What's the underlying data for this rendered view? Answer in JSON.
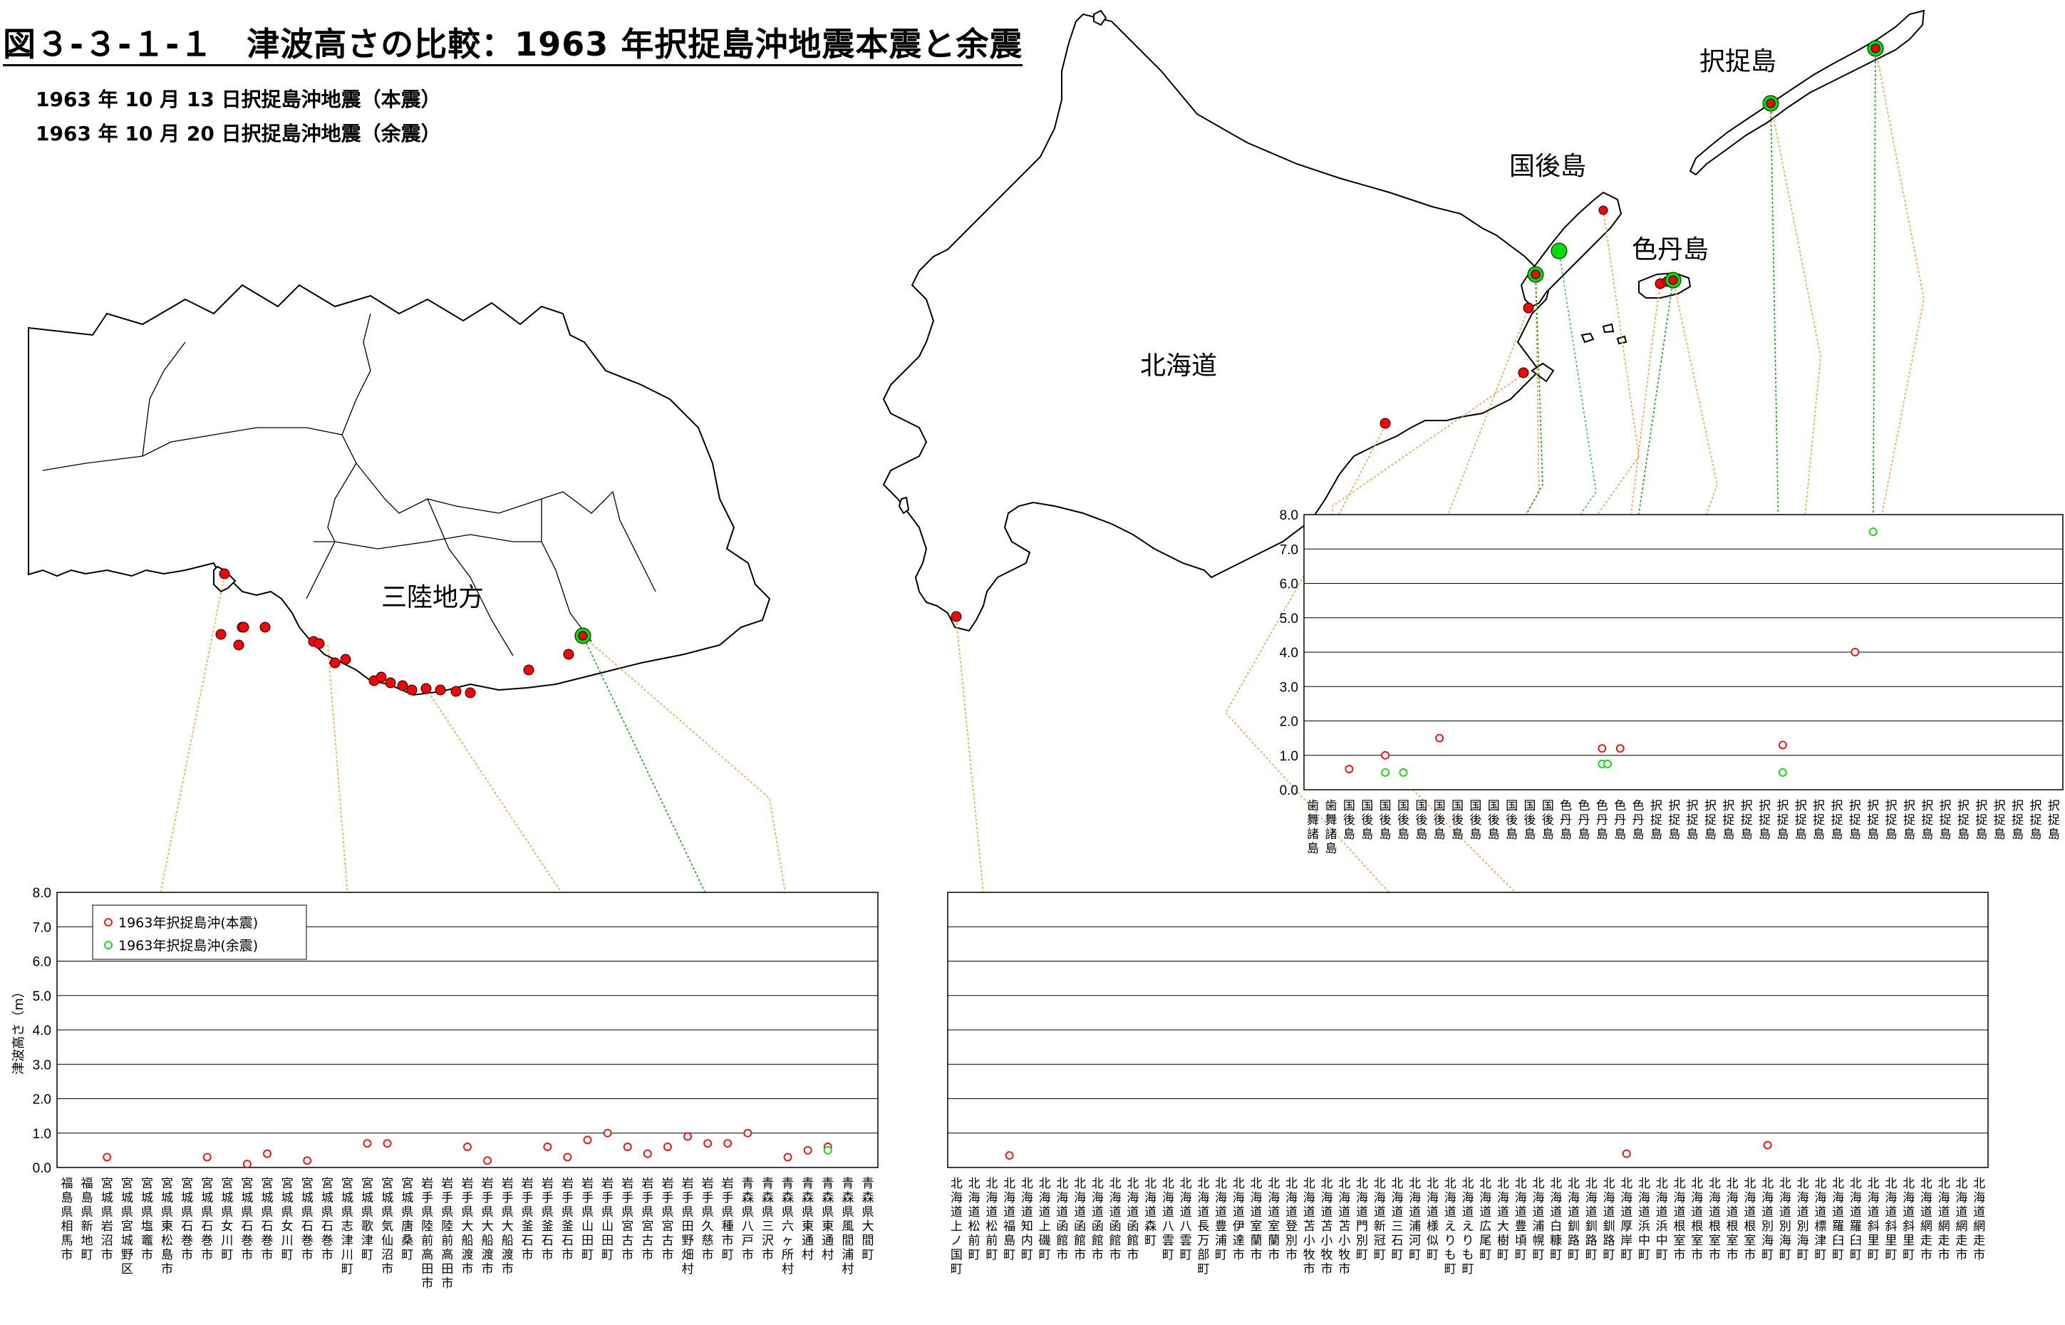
{
  "header": {
    "title": "図３-３-１-１　津波高さの比較：1963 年択捉島沖地震本震と余震",
    "subtitle_1": "1963 年 10 月 13 日択捉島沖地震（本震）",
    "subtitle_2": "1963 年 10 月 20 日択捉島沖地震（余震）"
  },
  "map": {
    "region_labels": [
      "三陸地方",
      "北海道",
      "国後島",
      "色丹島",
      "択捉島"
    ],
    "colors": {
      "mainshock": "#ff0000",
      "aftershock": "#00dd00",
      "connector_main": "#ff9933",
      "connector_after_1": "#00aa00",
      "connector_after_2": "#33aaaa"
    }
  },
  "chart_data": [
    {
      "type": "scatter",
      "id": "tohoku",
      "ylabel": "津波高さ（m）",
      "ylim": [
        0,
        8
      ],
      "yticks": [
        "0.0",
        "1.0",
        "2.0",
        "3.0",
        "4.0",
        "5.0",
        "6.0",
        "7.0",
        "8.0"
      ],
      "grid": true,
      "legend_position": "top-left",
      "series": [
        {
          "name": "1963年択捉島沖(本震)",
          "color": "#ff0000",
          "points": [
            [
              2,
              0.3
            ],
            [
              7,
              0.3
            ],
            [
              9,
              0.1
            ],
            [
              10,
              0.4
            ],
            [
              12,
              0.2
            ],
            [
              15,
              0.7
            ],
            [
              16,
              0.7
            ],
            [
              20,
              0.6
            ],
            [
              21,
              0.2
            ],
            [
              24,
              0.6
            ],
            [
              25,
              0.3
            ],
            [
              26,
              0.8
            ],
            [
              27,
              1.0
            ],
            [
              28,
              0.6
            ],
            [
              29,
              0.4
            ],
            [
              30,
              0.6
            ],
            [
              31,
              0.9
            ],
            [
              32,
              0.7
            ],
            [
              33,
              0.7
            ],
            [
              34,
              1.0
            ],
            [
              36,
              0.3
            ],
            [
              37,
              0.5
            ],
            [
              38,
              0.6
            ]
          ]
        },
        {
          "name": "1963年択捉島沖(余震)",
          "color": "#00dd00",
          "points": [
            [
              38,
              0.5
            ]
          ]
        }
      ],
      "categories": [
        "福島県相馬市",
        "福島県新地町",
        "宮城県岩沼市",
        "宮城県宮城野区",
        "宮城県塩竈市",
        "宮城県東松島市",
        "宮城県石巻市",
        "宮城県石巻市",
        "宮城県女川町",
        "宮城県石巻市",
        "宮城県石巻市",
        "宮城県女川町",
        "宮城県石巻市",
        "宮城県石巻市",
        "宮城県志津川町",
        "宮城県歌津町",
        "宮城県気仙沼市",
        "宮城県唐桑町",
        "岩手県陸前高田市",
        "岩手県陸前高田市",
        "岩手県大船渡市",
        "岩手県大船渡市",
        "岩手県大船渡市",
        "岩手県釜石市",
        "岩手県釜石市",
        "岩手県釜石市",
        "岩手県山田町",
        "岩手県山田町",
        "岩手県宮古市",
        "岩手県宮古市",
        "岩手県宮古市",
        "岩手県田野畑村",
        "岩手県久慈市",
        "岩手県種市町",
        "青森県八戸市",
        "青森県三沢市",
        "青森県六ヶ所村",
        "青森県東通村",
        "青森県東通村",
        "青森県風間浦村",
        "青森県大間町"
      ]
    },
    {
      "type": "scatter",
      "id": "hokkaido",
      "ylim": [
        0,
        8
      ],
      "grid": true,
      "series": [
        {
          "name": "1963年択捉島沖(本震)",
          "color": "#ff0000",
          "points": [
            [
              3,
              0.35
            ],
            [
              38,
              0.4
            ],
            [
              46,
              0.65
            ]
          ]
        }
      ],
      "categories": [
        "北海道上ノ国町",
        "北海道松前町",
        "北海道松前町",
        "北海道福島町",
        "北海道知内町",
        "北海道上磯町",
        "北海道函館市",
        "北海道函館市",
        "北海道函館市",
        "北海道函館市",
        "北海道函館市",
        "北海道森町",
        "北海道八雲町",
        "北海道八雲町",
        "北海道長万部町",
        "北海道豊浦町",
        "北海道伊達市",
        "北海道室蘭市",
        "北海道室蘭市",
        "北海道登別市",
        "北海道苫小牧市",
        "北海道苫小牧市",
        "北海道苫小牧市",
        "北海道門別町",
        "北海道新冠町",
        "北海道三石町",
        "北海道浦河町",
        "北海道様似町",
        "北海道えりも町",
        "北海道えりも町",
        "北海道広尾町",
        "北海道大樹町",
        "北海道豊頃町",
        "北海道浦幌町",
        "北海道白糠町",
        "北海道釧路町",
        "北海道釧路町",
        "北海道釧路町",
        "北海道厚岸町",
        "北海道浜中町",
        "北海道浜中町",
        "北海道根室市",
        "北海道根室市",
        "北海道根室市",
        "北海道根室市",
        "北海道根室市",
        "北海道別海町",
        "北海道別海町",
        "北海道別海町",
        "北海道標津町",
        "北海道羅臼町",
        "北海道羅臼町",
        "北海道斜里町",
        "北海道斜里町",
        "北海道斜里町",
        "北海道網走市",
        "北海道網走市",
        "北海道網走市",
        "北海道網走市"
      ]
    },
    {
      "type": "scatter",
      "id": "islands",
      "ylim": [
        0,
        8
      ],
      "yticks": [
        "0.0",
        "1.0",
        "2.0",
        "3.0",
        "4.0",
        "5.0",
        "6.0",
        "7.0",
        "8.0"
      ],
      "grid": true,
      "series": [
        {
          "name": "1963年択捉島沖(本震)",
          "color": "#ff0000",
          "points": [
            [
              2,
              0.6
            ],
            [
              4,
              1.0
            ],
            [
              7,
              1.5
            ],
            [
              16,
              1.2
            ],
            [
              17,
              1.2
            ],
            [
              26,
              1.3
            ],
            [
              30,
              4.0
            ]
          ]
        },
        {
          "name": "1963年択捉島沖(余震)",
          "color": "#00dd00",
          "points": [
            [
              4,
              0.5
            ],
            [
              5,
              0.5
            ],
            [
              16,
              0.75
            ],
            [
              16.3,
              0.75
            ],
            [
              26,
              0.5
            ],
            [
              31,
              7.5
            ]
          ]
        }
      ],
      "categories": [
        "歯舞諸島",
        "歯舞諸島",
        "国後島",
        "国後島",
        "国後島",
        "国後島",
        "国後島",
        "国後島",
        "国後島",
        "国後島",
        "国後島",
        "国後島",
        "国後島",
        "国後島",
        "色丹島",
        "色丹島",
        "色丹島",
        "色丹島",
        "色丹島",
        "択捉島",
        "択捉島",
        "択捉島",
        "択捉島",
        "択捉島",
        "択捉島",
        "択捉島",
        "択捉島",
        "択捉島",
        "択捉島",
        "択捉島",
        "択捉島",
        "択捉島",
        "択捉島",
        "択捉島",
        "択捉島",
        "択捉島",
        "択捉島",
        "択捉島",
        "択捉島",
        "択捉島",
        "択捉島",
        "択捉島"
      ]
    }
  ]
}
